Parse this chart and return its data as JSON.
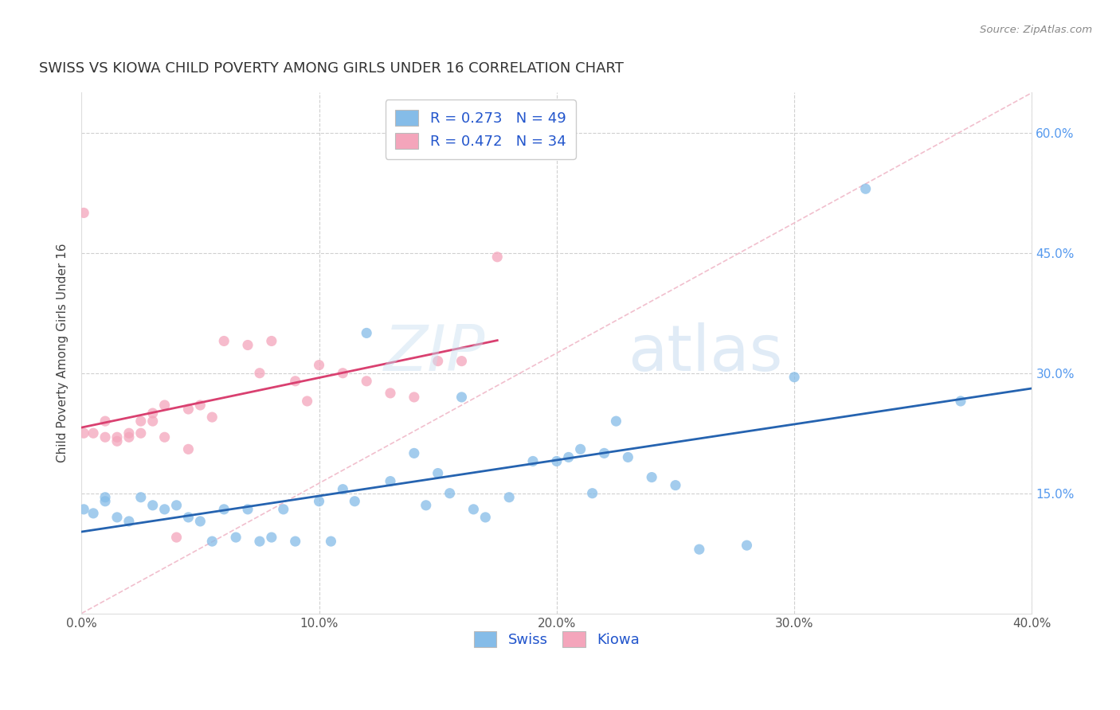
{
  "title": "SWISS VS KIOWA CHILD POVERTY AMONG GIRLS UNDER 16 CORRELATION CHART",
  "source": "Source: ZipAtlas.com",
  "ylabel": "Child Poverty Among Girls Under 16",
  "xlim": [
    0.0,
    0.4
  ],
  "ylim": [
    0.0,
    0.65
  ],
  "watermark_zip": "ZIP",
  "watermark_atlas": "atlas",
  "swiss_R": 0.273,
  "swiss_N": 49,
  "kiowa_R": 0.472,
  "kiowa_N": 34,
  "swiss_color": "#85bce8",
  "kiowa_color": "#f4a5bb",
  "swiss_line_color": "#2563b0",
  "kiowa_line_color": "#d94070",
  "diagonal_color": "#f0b8c8",
  "swiss_x": [
    0.001,
    0.005,
    0.01,
    0.01,
    0.015,
    0.02,
    0.025,
    0.03,
    0.035,
    0.04,
    0.045,
    0.05,
    0.055,
    0.06,
    0.065,
    0.07,
    0.075,
    0.08,
    0.085,
    0.09,
    0.1,
    0.105,
    0.11,
    0.115,
    0.12,
    0.13,
    0.14,
    0.145,
    0.15,
    0.155,
    0.16,
    0.165,
    0.17,
    0.18,
    0.19,
    0.2,
    0.205,
    0.21,
    0.215,
    0.22,
    0.225,
    0.23,
    0.24,
    0.25,
    0.26,
    0.28,
    0.3,
    0.33,
    0.37
  ],
  "swiss_y": [
    0.13,
    0.125,
    0.14,
    0.145,
    0.12,
    0.115,
    0.145,
    0.135,
    0.13,
    0.135,
    0.12,
    0.115,
    0.09,
    0.13,
    0.095,
    0.13,
    0.09,
    0.095,
    0.13,
    0.09,
    0.14,
    0.09,
    0.155,
    0.14,
    0.35,
    0.165,
    0.2,
    0.135,
    0.175,
    0.15,
    0.27,
    0.13,
    0.12,
    0.145,
    0.19,
    0.19,
    0.195,
    0.205,
    0.15,
    0.2,
    0.24,
    0.195,
    0.17,
    0.16,
    0.08,
    0.085,
    0.295,
    0.53,
    0.265
  ],
  "kiowa_x": [
    0.001,
    0.001,
    0.005,
    0.01,
    0.01,
    0.015,
    0.015,
    0.02,
    0.02,
    0.025,
    0.025,
    0.03,
    0.03,
    0.035,
    0.035,
    0.04,
    0.045,
    0.045,
    0.05,
    0.055,
    0.06,
    0.07,
    0.075,
    0.08,
    0.09,
    0.095,
    0.1,
    0.11,
    0.12,
    0.13,
    0.14,
    0.15,
    0.16,
    0.175
  ],
  "kiowa_y": [
    0.225,
    0.5,
    0.225,
    0.22,
    0.24,
    0.215,
    0.22,
    0.22,
    0.225,
    0.225,
    0.24,
    0.24,
    0.25,
    0.26,
    0.22,
    0.095,
    0.255,
    0.205,
    0.26,
    0.245,
    0.34,
    0.335,
    0.3,
    0.34,
    0.29,
    0.265,
    0.31,
    0.3,
    0.29,
    0.275,
    0.27,
    0.315,
    0.315,
    0.445
  ],
  "background_color": "#ffffff",
  "grid_color": "#d0d0d0"
}
